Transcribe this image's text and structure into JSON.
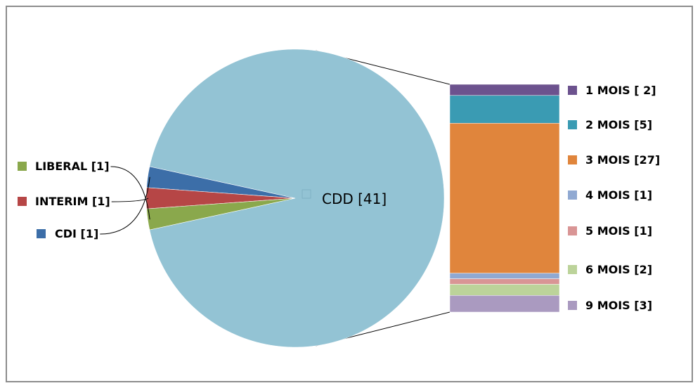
{
  "chart_data": {
    "type": "pie",
    "subtype": "bar-of-pie",
    "main": {
      "slices": [
        {
          "label": "CDD [41]",
          "value": 41,
          "color": "#93c3d4"
        },
        {
          "label": "CDI [1]",
          "value": 1,
          "color": "#3c6ea8"
        },
        {
          "label": "INTERIM [1]",
          "value": 1,
          "color": "#b64646"
        },
        {
          "label": "LIBERAL [1]",
          "value": 1,
          "color": "#8aa84c"
        }
      ]
    },
    "breakdown": {
      "parent": "CDD [41]",
      "items": [
        {
          "label": "1 MOIS [ 2]",
          "value": 2,
          "color": "#6c528e"
        },
        {
          "label": "2 MOIS [5]",
          "value": 5,
          "color": "#3a9bb3"
        },
        {
          "label": "3 MOIS [27]",
          "value": 27,
          "color": "#e0853c"
        },
        {
          "label": "4 MOIS [1]",
          "value": 1,
          "color": "#90a9d2"
        },
        {
          "label": "5 MOIS [1]",
          "value": 1,
          "color": "#d99595"
        },
        {
          "label": "6 MOIS [2]",
          "value": 2,
          "color": "#bcd39a"
        },
        {
          "label": "9 MOIS [3]",
          "value": 3,
          "color": "#aa9ac0"
        }
      ]
    },
    "legend_position": "right"
  }
}
